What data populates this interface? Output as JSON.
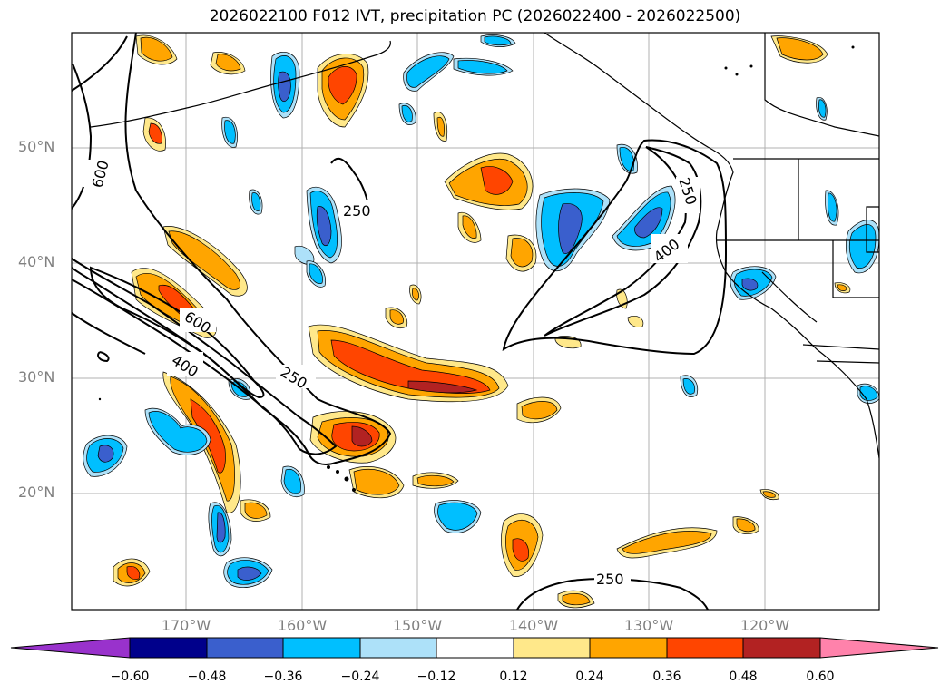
{
  "title": "2026022100 F012 IVT, precipitation PC (2026022400 - 2026022500)",
  "lat_labels": [
    "50°N",
    "40°N",
    "30°N",
    "20°N"
  ],
  "lon_labels": [
    "170°W",
    "160°W",
    "150°W",
    "140°W",
    "130°W",
    "120°W"
  ],
  "contour_labels": [
    "600",
    "250",
    "600",
    "400",
    "250",
    "250",
    "400",
    "250"
  ],
  "colorbar": {
    "ticks": [
      "−0.60",
      "−0.48",
      "−0.36",
      "−0.24",
      "−0.12",
      "0.12",
      "0.24",
      "0.36",
      "0.48",
      "0.60"
    ],
    "colors": [
      "#9932CC",
      "#00008B",
      "#3A5FCD",
      "#00BFFF",
      "#ADE1F9",
      "#FFFFFF",
      "#FFE88A",
      "#FFA500",
      "#FF4500",
      "#B22222",
      "#FF82AB"
    ]
  }
}
